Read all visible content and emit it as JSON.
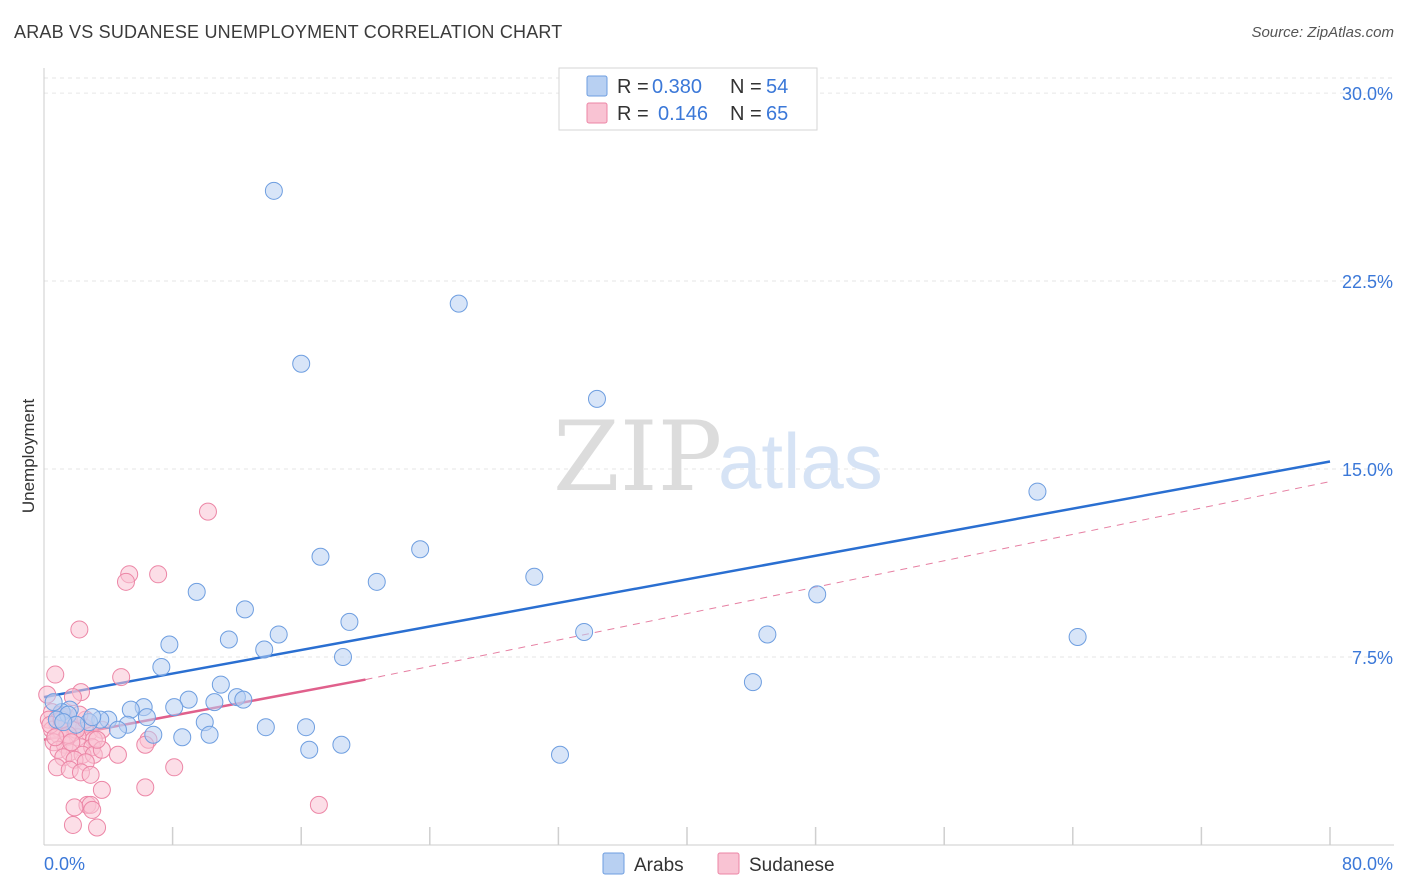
{
  "title": "ARAB VS SUDANESE UNEMPLOYMENT CORRELATION CHART",
  "source": "Source: ZipAtlas.com",
  "watermark": {
    "zip": "ZIP",
    "atlas": "atlas"
  },
  "colors": {
    "arabs_fill": "#b8d0f2",
    "arabs_stroke": "#6e9ee0",
    "arabs_line": "#2a6fd1",
    "sudanese_fill": "#f9c3d3",
    "sudanese_stroke": "#ec86a6",
    "sudanese_line": "#e0608c",
    "grid": "#e6e6e6",
    "tick_text": "#3b78d8"
  },
  "legend": {
    "rows": [
      {
        "r_label": "R =",
        "r_value": "0.380",
        "n_label": "N =",
        "n_value": "54"
      },
      {
        "r_label": "R =",
        "r_value": "0.146",
        "n_label": "N =",
        "n_value": "65"
      }
    ]
  },
  "bottom_legend": {
    "arabs": "Arabs",
    "sudanese": "Sudanese"
  },
  "chart_data": {
    "type": "scatter",
    "title": "ARAB VS SUDANESE UNEMPLOYMENT CORRELATION CHART",
    "ylabel": "Unemployment",
    "xlabel": "",
    "xlim": [
      0,
      80
    ],
    "ylim": [
      0,
      31
    ],
    "x_tick_labels": [
      {
        "value": 0,
        "label": "0.0%"
      },
      {
        "value": 80,
        "label": "80.0%"
      }
    ],
    "y_tick_labels": [
      {
        "value": 7.5,
        "label": "7.5%"
      },
      {
        "value": 15,
        "label": "15.0%"
      },
      {
        "value": 22.5,
        "label": "22.5%"
      },
      {
        "value": 30,
        "label": "30.0%"
      }
    ],
    "x_minor_ticks": [
      8,
      16,
      24,
      32,
      40,
      48,
      56,
      64,
      72,
      80
    ],
    "series": [
      {
        "name": "Arabs",
        "r": 0.38,
        "n": 54,
        "trend": {
          "x0": 0,
          "y0": 5.9,
          "x1": 80,
          "y1": 15.3
        },
        "points": [
          [
            14.3,
            26.1
          ],
          [
            25.8,
            21.6
          ],
          [
            16.0,
            19.2
          ],
          [
            34.4,
            17.8
          ],
          [
            61.8,
            14.1
          ],
          [
            23.4,
            11.8
          ],
          [
            17.2,
            11.5
          ],
          [
            20.7,
            10.5
          ],
          [
            30.5,
            10.7
          ],
          [
            9.5,
            10.1
          ],
          [
            48.1,
            10.0
          ],
          [
            12.5,
            9.4
          ],
          [
            19.0,
            8.9
          ],
          [
            33.6,
            8.5
          ],
          [
            45.0,
            8.4
          ],
          [
            64.3,
            8.3
          ],
          [
            14.6,
            8.4
          ],
          [
            11.5,
            8.2
          ],
          [
            7.8,
            8.0
          ],
          [
            13.7,
            7.8
          ],
          [
            18.6,
            7.5
          ],
          [
            7.3,
            7.1
          ],
          [
            44.1,
            6.5
          ],
          [
            11.0,
            6.4
          ],
          [
            9.0,
            5.8
          ],
          [
            10.6,
            5.7
          ],
          [
            12.0,
            5.9
          ],
          [
            12.4,
            5.8
          ],
          [
            8.1,
            5.5
          ],
          [
            6.2,
            5.5
          ],
          [
            5.4,
            5.4
          ],
          [
            1.6,
            5.4
          ],
          [
            1.1,
            5.3
          ],
          [
            6.4,
            5.1
          ],
          [
            4.0,
            5.0
          ],
          [
            3.5,
            5.0
          ],
          [
            2.8,
            4.9
          ],
          [
            10.0,
            4.9
          ],
          [
            5.2,
            4.8
          ],
          [
            13.8,
            4.7
          ],
          [
            16.3,
            4.7
          ],
          [
            4.6,
            4.6
          ],
          [
            0.6,
            5.7
          ],
          [
            1.5,
            5.2
          ],
          [
            6.8,
            4.4
          ],
          [
            8.6,
            4.3
          ],
          [
            10.3,
            4.4
          ],
          [
            18.5,
            4.0
          ],
          [
            16.5,
            3.8
          ],
          [
            32.1,
            3.6
          ],
          [
            0.8,
            5.0
          ],
          [
            2.0,
            4.8
          ],
          [
            3.0,
            5.1
          ],
          [
            1.2,
            4.9
          ]
        ]
      },
      {
        "name": "Sudanese",
        "r": 0.146,
        "n": 65,
        "trend": {
          "x0": 0,
          "y0": 4.2,
          "x1": 20,
          "y1": 6.6
        },
        "trend_ext": {
          "x0": 20,
          "y0": 6.6,
          "x1": 80,
          "y1": 14.5
        },
        "points": [
          [
            10.2,
            13.3
          ],
          [
            7.1,
            10.8
          ],
          [
            5.3,
            10.8
          ],
          [
            5.1,
            10.5
          ],
          [
            2.2,
            8.6
          ],
          [
            0.7,
            6.8
          ],
          [
            4.8,
            6.7
          ],
          [
            2.3,
            6.1
          ],
          [
            1.8,
            5.9
          ],
          [
            0.2,
            6.0
          ],
          [
            0.5,
            5.3
          ],
          [
            1.0,
            5.2
          ],
          [
            1.4,
            5.1
          ],
          [
            0.3,
            5.0
          ],
          [
            0.8,
            4.9
          ],
          [
            1.2,
            4.9
          ],
          [
            1.6,
            4.8
          ],
          [
            2.5,
            4.7
          ],
          [
            0.5,
            4.6
          ],
          [
            1.0,
            4.6
          ],
          [
            1.9,
            4.6
          ],
          [
            2.8,
            4.5
          ],
          [
            3.6,
            4.6
          ],
          [
            0.9,
            4.4
          ],
          [
            1.4,
            4.3
          ],
          [
            2.1,
            4.3
          ],
          [
            3.1,
            4.2
          ],
          [
            0.6,
            4.1
          ],
          [
            1.3,
            4.0
          ],
          [
            2.3,
            3.9
          ],
          [
            3.0,
            3.9
          ],
          [
            0.9,
            3.8
          ],
          [
            1.6,
            3.7
          ],
          [
            2.4,
            3.6
          ],
          [
            3.1,
            3.6
          ],
          [
            1.2,
            3.5
          ],
          [
            1.9,
            3.4
          ],
          [
            2.6,
            3.3
          ],
          [
            0.8,
            3.1
          ],
          [
            1.6,
            3.0
          ],
          [
            2.3,
            2.9
          ],
          [
            2.9,
            2.8
          ],
          [
            3.6,
            3.8
          ],
          [
            4.6,
            3.6
          ],
          [
            6.5,
            4.2
          ],
          [
            6.3,
            4.0
          ],
          [
            8.1,
            3.1
          ],
          [
            6.3,
            2.3
          ],
          [
            3.6,
            2.2
          ],
          [
            2.7,
            1.6
          ],
          [
            2.9,
            1.6
          ],
          [
            1.9,
            1.5
          ],
          [
            3.0,
            1.4
          ],
          [
            1.8,
            0.8
          ],
          [
            3.3,
            0.7
          ],
          [
            17.1,
            1.6
          ],
          [
            2.0,
            4.6
          ],
          [
            1.5,
            4.4
          ],
          [
            0.4,
            4.8
          ],
          [
            1.1,
            5.0
          ],
          [
            2.6,
            5.0
          ],
          [
            3.3,
            4.2
          ],
          [
            0.7,
            4.3
          ],
          [
            1.7,
            4.1
          ],
          [
            2.2,
            5.2
          ]
        ]
      }
    ]
  }
}
